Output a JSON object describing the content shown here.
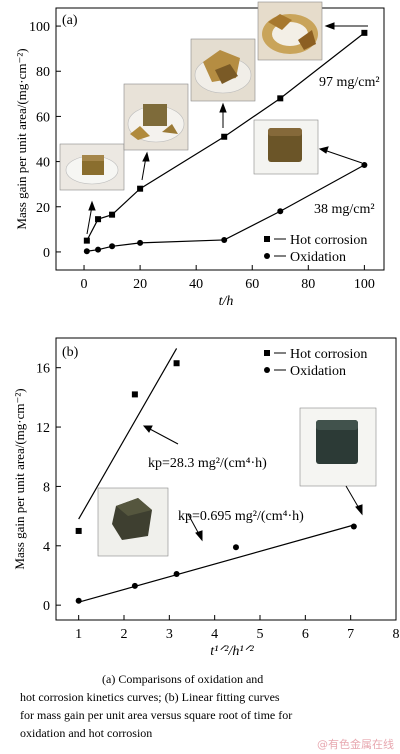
{
  "chart_data": [
    {
      "type": "line",
      "panel_label": "(a)",
      "xlabel": "t/h",
      "ylabel": "Mass gain per unit area/(mg·cm⁻²)",
      "xlim": [
        -10,
        107
      ],
      "ylim": [
        -8,
        108
      ],
      "xticks": [
        "0",
        "20",
        "40",
        "60",
        "80",
        "100"
      ],
      "yticks": [
        "0",
        "20",
        "40",
        "60",
        "80",
        "100"
      ],
      "grid": false,
      "legend_position": "bottom-right",
      "series": [
        {
          "name": "Hot corrosion",
          "marker": "square",
          "x": [
            1,
            5,
            10,
            20,
            50,
            70,
            100
          ],
          "y": [
            5,
            14.5,
            16.5,
            28,
            51,
            68,
            97
          ]
        },
        {
          "name": "Oxidation",
          "marker": "circle",
          "x": [
            1,
            5,
            10,
            20,
            50,
            70,
            100
          ],
          "y": [
            0.3,
            1,
            2.5,
            4,
            5.3,
            18,
            38.5
          ]
        }
      ],
      "annotations": [
        "97 mg/cm²",
        "38 mg/cm²"
      ]
    },
    {
      "type": "scatter",
      "panel_label": "(b)",
      "xlabel": "t¹ᐟ²/h¹ᐟ²",
      "ylabel": "Mass gain per unit area/(mg·cm⁻²)",
      "xlim": [
        0.5,
        8
      ],
      "ylim": [
        -1,
        18
      ],
      "xticks": [
        "1",
        "2",
        "3",
        "4",
        "5",
        "6",
        "7",
        "8"
      ],
      "yticks": [
        "0",
        "4",
        "8",
        "12",
        "16"
      ],
      "grid": false,
      "legend_position": "top-right",
      "series": [
        {
          "name": "Hot corrosion",
          "marker": "square",
          "x": [
            1,
            2.24,
            3.16
          ],
          "y": [
            5,
            14.2,
            16.3
          ],
          "fit": {
            "x": [
              1,
              3.16
            ],
            "y": [
              5.8,
              17.3
            ]
          }
        },
        {
          "name": "Oxidation",
          "marker": "circle",
          "x": [
            1,
            2.24,
            3.16,
            4.47,
            7.07
          ],
          "y": [
            0.3,
            1.3,
            2.1,
            3.9,
            5.3
          ],
          "fit": {
            "x": [
              1,
              7.07
            ],
            "y": [
              0.2,
              5.4
            ]
          }
        }
      ],
      "annotations": [
        "kp=28.3 mg²/(cm⁴·h)",
        "kp=0.695 mg²/(cm⁴·h)"
      ]
    }
  ],
  "caption": {
    "line1": "(a) Comparisons of oxidation and",
    "line2": "hot corrosion kinetics curves; (b) Linear fitting curves",
    "line3": "for mass gain per unit area versus square root of time for",
    "line4": "oxidation and hot corrosion"
  },
  "watermark": "@有色金属在线",
  "colors": {
    "ink": "#000000",
    "photo_frame": "#d8d8d8"
  }
}
